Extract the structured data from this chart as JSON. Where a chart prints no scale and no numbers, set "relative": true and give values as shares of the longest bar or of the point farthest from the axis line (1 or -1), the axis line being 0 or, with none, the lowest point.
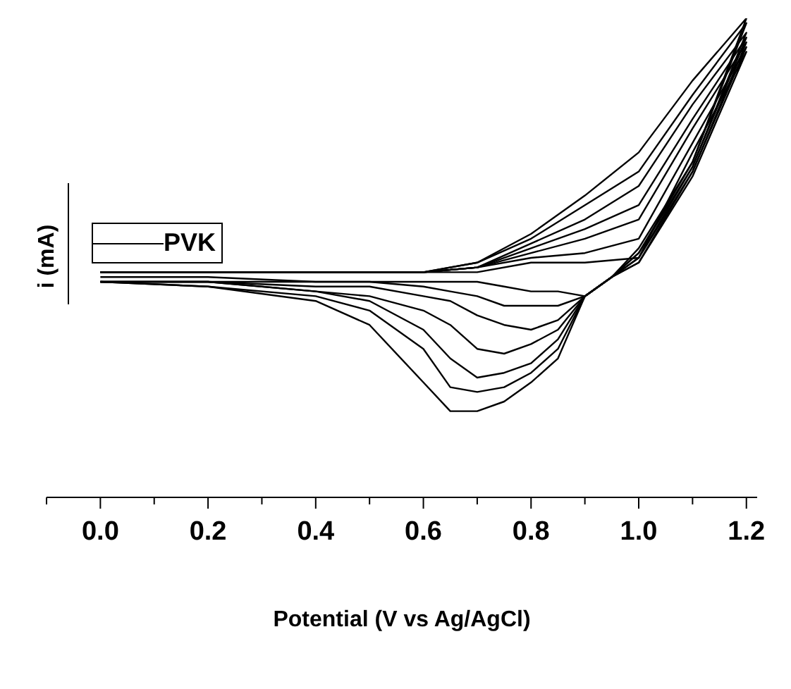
{
  "chart_data": {
    "type": "line",
    "relative": true,
    "xlabel": "Potential (V vs Ag/AgCl)",
    "ylabel": "i (mA)",
    "legend": "top left",
    "marker": "none",
    "line_style": "solid",
    "xlim": [
      -0.1,
      1.22
    ],
    "xticks": [
      {
        "value": -0.1,
        "label": null
      },
      {
        "value": 0,
        "label": "0.0"
      },
      {
        "value": 0.1,
        "label": null
      },
      {
        "value": 0.2,
        "label": "0.2"
      },
      {
        "value": 0.3,
        "label": null
      },
      {
        "value": 0.4,
        "label": "0.4"
      },
      {
        "value": 0.5,
        "label": null
      },
      {
        "value": 0.6,
        "label": "0.6"
      },
      {
        "value": 0.7,
        "label": null
      },
      {
        "value": 0.8,
        "label": "0.8"
      },
      {
        "value": 0.9,
        "label": null
      },
      {
        "value": 1,
        "label": "1.0"
      },
      {
        "value": 1.1,
        "label": null
      },
      {
        "value": 1.2,
        "label": "1.2"
      }
    ],
    "x": [
      0,
      0.3,
      0.6,
      0.7,
      0.8,
      0.9,
      1.0,
      1.1,
      1.2,
      1.1,
      1.0,
      0.95,
      0.9,
      0.85,
      0.8,
      0.75,
      0.7,
      0.65,
      0.6,
      0.5,
      0.4,
      0.2,
      0
    ],
    "series": [
      {
        "name": "PVK",
        "color": "#000000",
        "values": [
          0.47,
          0.47,
          0.47,
          0.47,
          0.49,
          0.49,
          0.5,
          0.72,
          0.93,
          0.67,
          0.49,
          0.46,
          0.42,
          0.43,
          0.43,
          0.44,
          0.45,
          0.45,
          0.45,
          0.45,
          0.45,
          0.46,
          0.46
        ]
      },
      {
        "color": "#000000",
        "values": [
          0.47,
          0.47,
          0.47,
          0.48,
          0.5,
          0.51,
          0.54,
          0.74,
          0.94,
          0.68,
          0.49,
          0.46,
          0.42,
          0.4,
          0.4,
          0.4,
          0.42,
          0.43,
          0.44,
          0.45,
          0.45,
          0.45,
          0.45
        ]
      },
      {
        "color": "#000000",
        "values": [
          0.47,
          0.47,
          0.47,
          0.48,
          0.51,
          0.54,
          0.58,
          0.77,
          0.95,
          0.68,
          0.5,
          0.46,
          0.42,
          0.37,
          0.35,
          0.36,
          0.38,
          0.41,
          0.42,
          0.44,
          0.44,
          0.45,
          0.45
        ]
      },
      {
        "color": "#000000",
        "values": [
          0.47,
          0.47,
          0.47,
          0.48,
          0.52,
          0.56,
          0.61,
          0.79,
          0.96,
          0.69,
          0.5,
          0.46,
          0.42,
          0.35,
          0.32,
          0.3,
          0.31,
          0.36,
          0.39,
          0.42,
          0.43,
          0.45,
          0.45
        ]
      },
      {
        "color": "#000000",
        "values": [
          0.47,
          0.47,
          0.47,
          0.48,
          0.53,
          0.58,
          0.65,
          0.82,
          0.97,
          0.69,
          0.51,
          0.46,
          0.42,
          0.33,
          0.28,
          0.26,
          0.25,
          0.29,
          0.35,
          0.41,
          0.43,
          0.45,
          0.45
        ]
      },
      {
        "color": "#000000",
        "values": [
          0.47,
          0.47,
          0.47,
          0.49,
          0.54,
          0.61,
          0.68,
          0.84,
          0.99,
          0.7,
          0.51,
          0.46,
          0.42,
          0.31,
          0.26,
          0.23,
          0.22,
          0.23,
          0.31,
          0.39,
          0.42,
          0.44,
          0.45
        ]
      },
      {
        "color": "#000000",
        "values": [
          0.47,
          0.47,
          0.47,
          0.49,
          0.55,
          0.63,
          0.72,
          0.87,
          1.0,
          0.7,
          0.52,
          0.46,
          0.42,
          0.29,
          0.24,
          0.2,
          0.18,
          0.18,
          0.24,
          0.36,
          0.41,
          0.44,
          0.45
        ]
      }
    ]
  }
}
